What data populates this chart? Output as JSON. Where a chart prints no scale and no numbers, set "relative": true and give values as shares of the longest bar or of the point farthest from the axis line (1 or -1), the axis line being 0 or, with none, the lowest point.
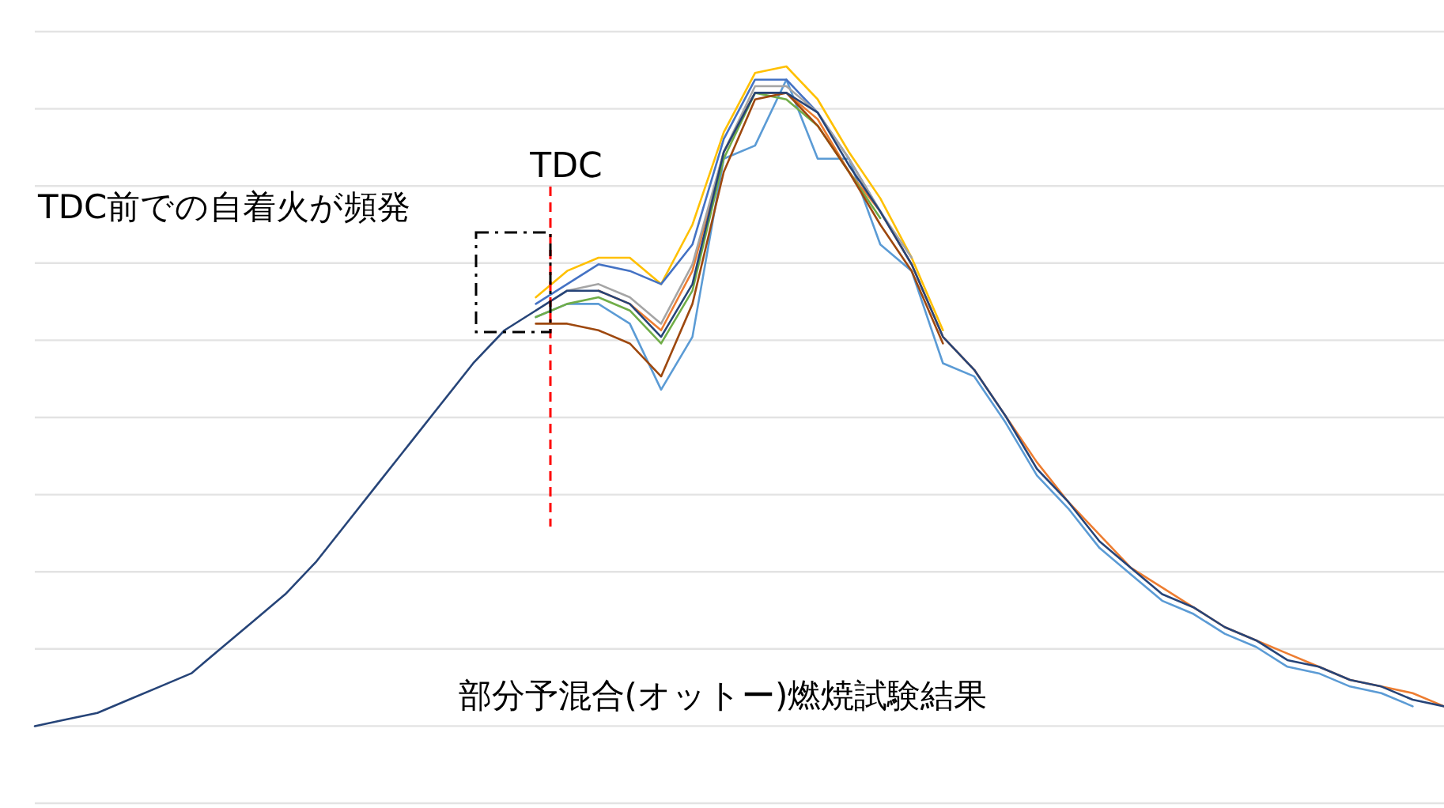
{
  "chart_data": {
    "type": "line",
    "relative": true,
    "grid": "y",
    "line_style": "solid",
    "marker": "none",
    "categories": [
      null,
      null,
      null,
      null,
      null,
      null,
      null,
      null,
      null,
      null,
      null,
      null,
      null,
      null,
      null,
      null,
      null,
      null,
      null,
      null,
      null,
      null,
      null,
      null,
      null,
      null,
      null,
      null,
      null,
      null,
      null,
      null,
      null,
      null,
      null,
      null,
      null,
      null,
      null,
      null,
      null,
      null,
      null,
      null,
      null,
      null
    ],
    "series": [
      {
        "color": "#ffc000",
        "values": [
          null,
          null,
          null,
          null,
          null,
          null,
          null,
          null,
          null,
          null,
          null,
          null,
          null,
          null,
          null,
          null,
          0.65,
          0.69,
          0.71,
          0.71,
          0.67,
          0.76,
          0.9,
          0.99,
          1.0,
          0.95,
          0.87,
          0.8,
          0.71,
          0.6,
          null,
          null,
          null,
          null,
          null,
          null,
          null,
          null,
          null,
          null,
          null,
          null,
          null,
          null,
          null,
          null
        ]
      },
      {
        "color": "#5b9bd5",
        "values": [
          null,
          null,
          null,
          null,
          null,
          null,
          null,
          null,
          null,
          null,
          null,
          null,
          null,
          null,
          null,
          null,
          0.62,
          0.64,
          0.64,
          0.61,
          0.51,
          0.59,
          0.86,
          0.88,
          0.98,
          0.86,
          0.86,
          0.73,
          0.69,
          0.55,
          0.53,
          0.46,
          0.38,
          0.33,
          0.27,
          0.23,
          0.19,
          0.17,
          0.14,
          0.12,
          0.09,
          0.08,
          0.06,
          0.05,
          0.03,
          null
        ]
      },
      {
        "color": "#4472c4",
        "values": [
          null,
          null,
          null,
          null,
          null,
          null,
          null,
          null,
          null,
          null,
          null,
          null,
          null,
          null,
          null,
          null,
          0.64,
          0.67,
          0.7,
          0.69,
          0.67,
          0.73,
          0.89,
          0.98,
          0.98,
          0.93,
          0.86,
          0.78,
          0.7,
          null,
          null,
          null,
          null,
          null,
          null,
          null,
          null,
          null,
          null,
          null,
          null,
          null,
          null,
          null,
          null,
          null
        ]
      },
      {
        "color": "#ed7d31",
        "values": [
          null,
          null,
          null,
          null,
          null,
          null,
          null,
          null,
          null,
          null,
          null,
          null,
          null,
          null,
          null,
          null,
          null,
          null,
          0.66,
          0.64,
          0.6,
          0.69,
          0.87,
          0.96,
          0.96,
          0.92,
          0.84,
          0.78,
          0.7,
          0.59,
          0.54,
          0.47,
          0.4,
          0.34,
          0.29,
          0.24,
          0.21,
          0.18,
          0.15,
          0.13,
          0.11,
          0.09,
          0.07,
          0.06,
          0.05,
          0.03
        ]
      },
      {
        "color": "#a5a5a5",
        "values": [
          null,
          null,
          null,
          null,
          null,
          null,
          null,
          null,
          null,
          null,
          null,
          null,
          null,
          null,
          null,
          null,
          0.63,
          0.66,
          0.67,
          0.65,
          0.61,
          0.7,
          0.87,
          0.97,
          0.97,
          0.93,
          0.86,
          0.78,
          0.71,
          null,
          null,
          null,
          null,
          null,
          null,
          null,
          null,
          null,
          null,
          null,
          null,
          null,
          null,
          null,
          null,
          null
        ]
      },
      {
        "color": "#70ad47",
        "values": [
          null,
          null,
          null,
          null,
          null,
          null,
          null,
          null,
          null,
          null,
          null,
          null,
          null,
          null,
          null,
          null,
          0.62,
          0.64,
          0.65,
          0.63,
          0.58,
          0.66,
          0.86,
          0.96,
          0.95,
          0.91,
          0.84,
          0.77,
          null,
          null,
          null,
          null,
          null,
          null,
          null,
          null,
          null,
          null,
          null,
          null,
          null,
          null,
          null,
          null,
          null,
          null
        ]
      },
      {
        "color": "#9e480e",
        "values": [
          null,
          null,
          null,
          null,
          null,
          null,
          null,
          null,
          null,
          null,
          null,
          null,
          null,
          null,
          null,
          null,
          0.61,
          0.61,
          0.6,
          0.58,
          0.53,
          0.64,
          0.84,
          0.95,
          0.96,
          0.91,
          0.84,
          0.76,
          0.69,
          0.58,
          null,
          null,
          null,
          null,
          null,
          null,
          null,
          null,
          null,
          null,
          null,
          null,
          null,
          null,
          null,
          null
        ]
      },
      {
        "color": "#264478",
        "values": [
          0,
          0.01,
          0.02,
          0.04,
          0.06,
          0.08,
          0.12,
          0.16,
          0.2,
          0.25,
          0.31,
          0.37,
          0.43,
          0.49,
          0.55,
          0.6,
          0.63,
          0.66,
          0.66,
          0.64,
          0.59,
          0.67,
          0.87,
          0.96,
          0.96,
          0.93,
          0.85,
          0.78,
          0.7,
          0.59,
          0.54,
          0.47,
          0.39,
          0.34,
          0.28,
          0.24,
          0.2,
          0.18,
          0.15,
          0.13,
          0.1,
          0.09,
          0.07,
          0.06,
          0.04,
          0.03
        ]
      }
    ],
    "annotations": [
      "TDC前での自着火が頻発",
      "TDC",
      "部分予混合(オットー)燃焼試験結果"
    ]
  }
}
